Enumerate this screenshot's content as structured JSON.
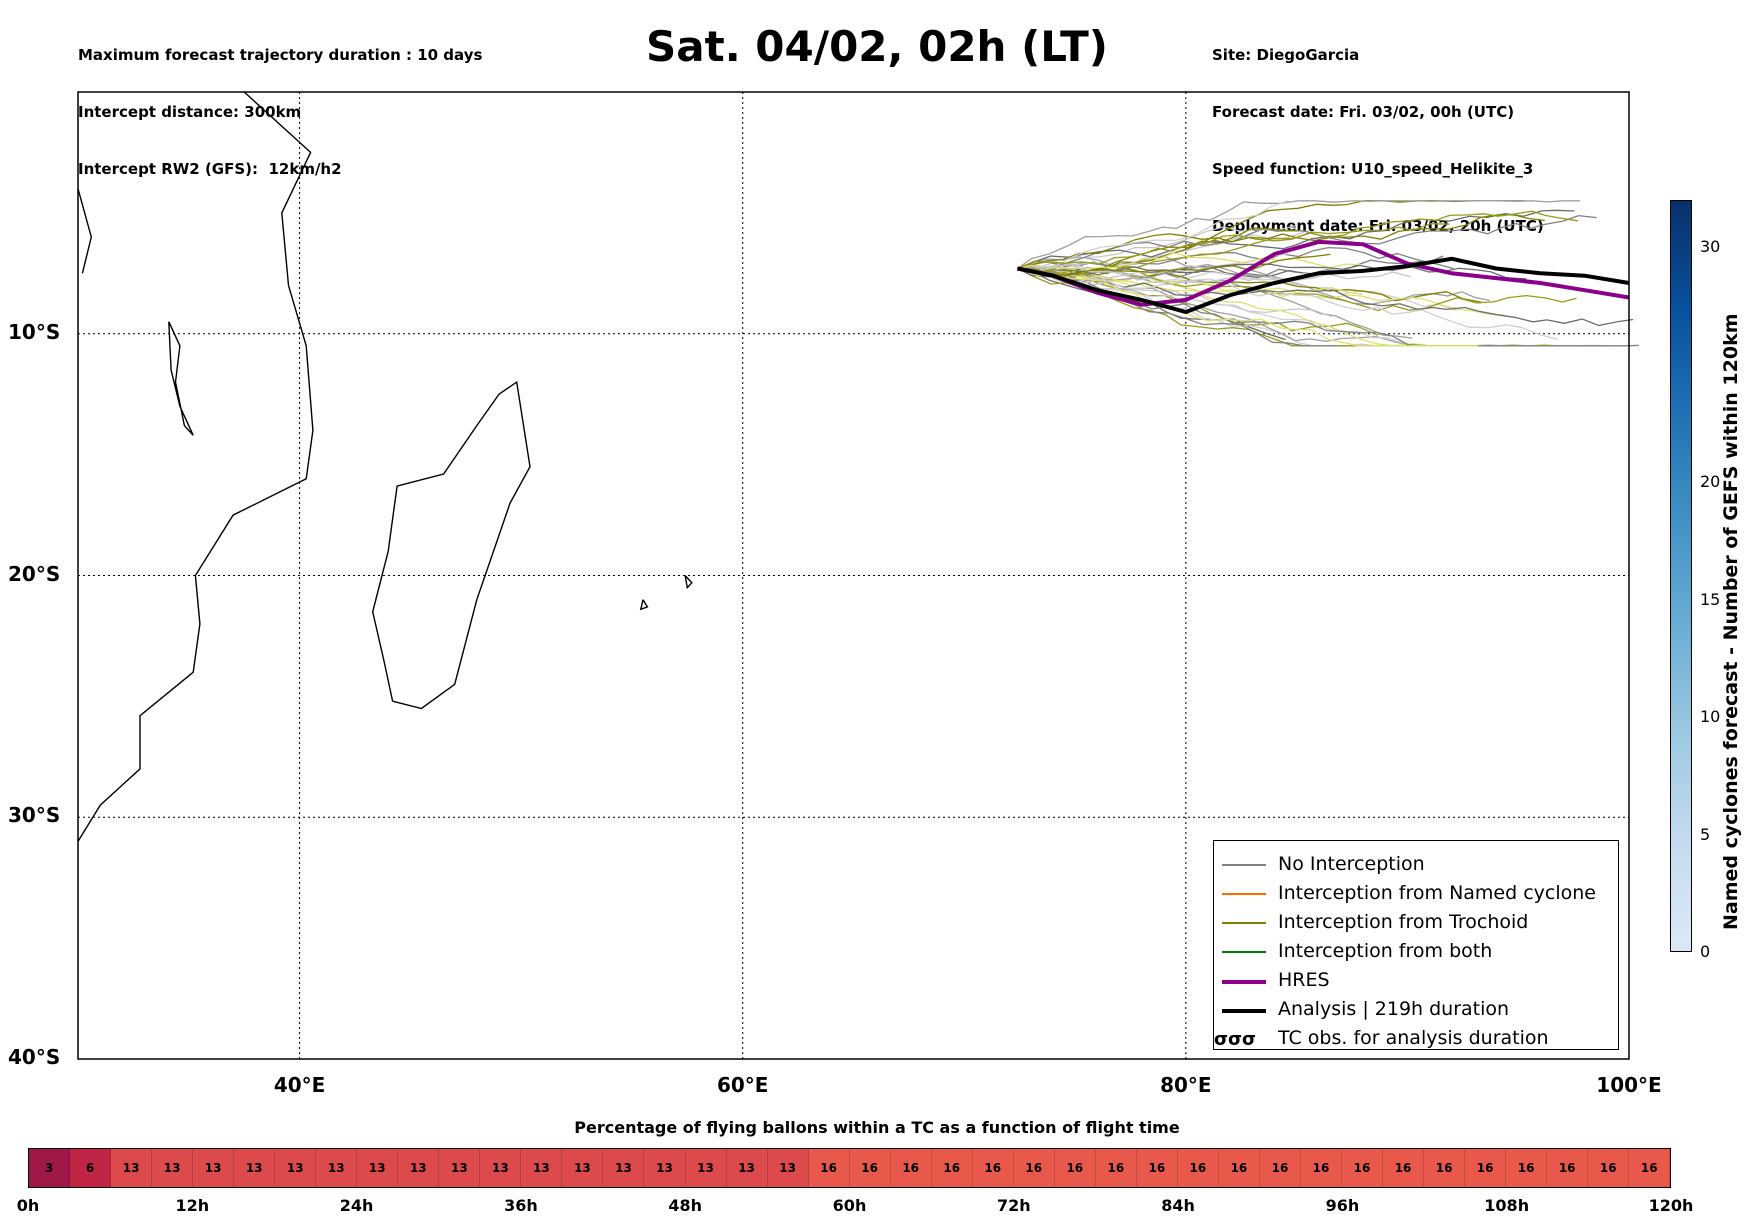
{
  "header_left": [
    "Maximum forecast trajectory duration : 10 days",
    "Intercept distance: 300km",
    "Intercept RW2 (GFS):  12km/h2"
  ],
  "title": "Sat. 04/02, 02h (LT)",
  "header_right": [
    "Site: DiegoGarcia",
    "Forecast date: Fri. 03/02, 00h (UTC)",
    "Speed function: U10_speed_Helikite_3",
    "Deployment date: Fri. 03/02, 20h (UTC)"
  ],
  "chart_data": [
    {
      "type": "map-trajectory",
      "x_range": [
        30,
        100
      ],
      "y_range": [
        -40,
        0
      ],
      "x_ticks": [
        "40°E",
        "60°E",
        "80°E",
        "100°E"
      ],
      "y_ticks": [
        "10°S",
        "20°S",
        "30°S",
        "40°S"
      ],
      "grid": true,
      "legend_position": "bottom-right",
      "start_point": {
        "lon": 72.4,
        "lat": -7.3
      },
      "series": [
        {
          "name": "HRES",
          "color": "#8b008b",
          "points": [
            [
              72.4,
              -7.3
            ],
            [
              74,
              -7.6
            ],
            [
              76,
              -8.3
            ],
            [
              78,
              -8.8
            ],
            [
              80,
              -8.6
            ],
            [
              82,
              -7.8
            ],
            [
              84,
              -6.7
            ],
            [
              86,
              -6.2
            ],
            [
              88,
              -6.3
            ],
            [
              90,
              -7.1
            ],
            [
              92,
              -7.5
            ],
            [
              94,
              -7.7
            ],
            [
              96,
              -7.9
            ],
            [
              98,
              -8.2
            ],
            [
              100,
              -8.5
            ]
          ]
        },
        {
          "name": "Analysis | 219h duration",
          "color": "#000000",
          "points": [
            [
              72.4,
              -7.3
            ],
            [
              74,
              -7.6
            ],
            [
              76,
              -8.2
            ],
            [
              78,
              -8.6
            ],
            [
              80,
              -9.1
            ],
            [
              82,
              -8.4
            ],
            [
              84,
              -7.9
            ],
            [
              86,
              -7.5
            ],
            [
              88,
              -7.4
            ],
            [
              90,
              -7.2
            ],
            [
              92,
              -6.9
            ],
            [
              94,
              -7.3
            ],
            [
              96,
              -7.5
            ],
            [
              98,
              -7.6
            ],
            [
              100,
              -7.9
            ]
          ]
        }
      ],
      "legend": [
        {
          "label": "No Interception",
          "color": "#808080",
          "style": "thin"
        },
        {
          "label": "Interception from Named cyclone",
          "color": "#ff6a00",
          "style": "thin"
        },
        {
          "label": "Interception from Trochoid",
          "color": "#808000",
          "style": "thin"
        },
        {
          "label": "Interception from both",
          "color": "#008000",
          "style": "thin"
        },
        {
          "label": "HRES",
          "color": "#8b008b",
          "style": "thick"
        },
        {
          "label": "Analysis | 219h duration",
          "color": "#000000",
          "style": "thick"
        },
        {
          "label": "TC obs. for analysis duration",
          "color": "#000000",
          "style": "symbol"
        }
      ]
    },
    {
      "type": "colorbar",
      "label": "Named cyclones forecast - Number of GEFS within 120km",
      "ticks": [
        0,
        5,
        10,
        15,
        20,
        30
      ],
      "range": [
        0,
        32
      ]
    },
    {
      "type": "heatmap",
      "title": "Percentage of flying ballons within a TC as a function of flight time",
      "values": [
        3,
        6,
        13,
        13,
        13,
        13,
        13,
        13,
        13,
        13,
        13,
        13,
        13,
        13,
        13,
        13,
        13,
        13,
        13,
        16,
        16,
        16,
        16,
        16,
        16,
        16,
        16,
        16,
        16,
        16,
        16,
        16,
        16,
        16,
        16,
        16,
        16,
        16,
        16,
        16
      ],
      "x_ticks": [
        "0h",
        "12h",
        "24h",
        "36h",
        "48h",
        "60h",
        "72h",
        "84h",
        "96h",
        "108h",
        "120h"
      ]
    }
  ]
}
